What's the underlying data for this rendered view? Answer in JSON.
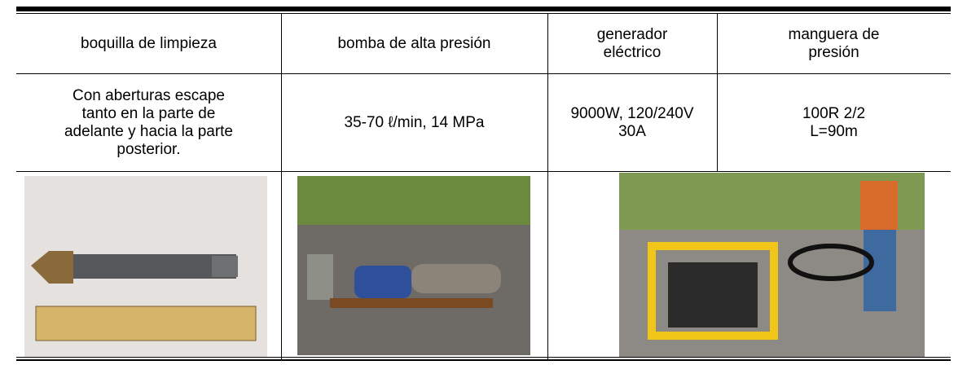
{
  "table": {
    "header": [
      [
        "boquilla de limpieza"
      ],
      [
        "bomba de alta presión"
      ],
      [
        "generador",
        "eléctrico"
      ],
      [
        "manguera de",
        "presión"
      ]
    ],
    "rows": [
      [
        [
          "Con aberturas escape",
          "tanto en la parte de",
          "adelante y hacia la parte",
          "posterior."
        ],
        [
          "35-70 ℓ/min, 14 MPa"
        ],
        [
          "9000W, 120/240V",
          "30A"
        ],
        [
          "100R 2/2",
          "L=90m"
        ]
      ]
    ]
  }
}
